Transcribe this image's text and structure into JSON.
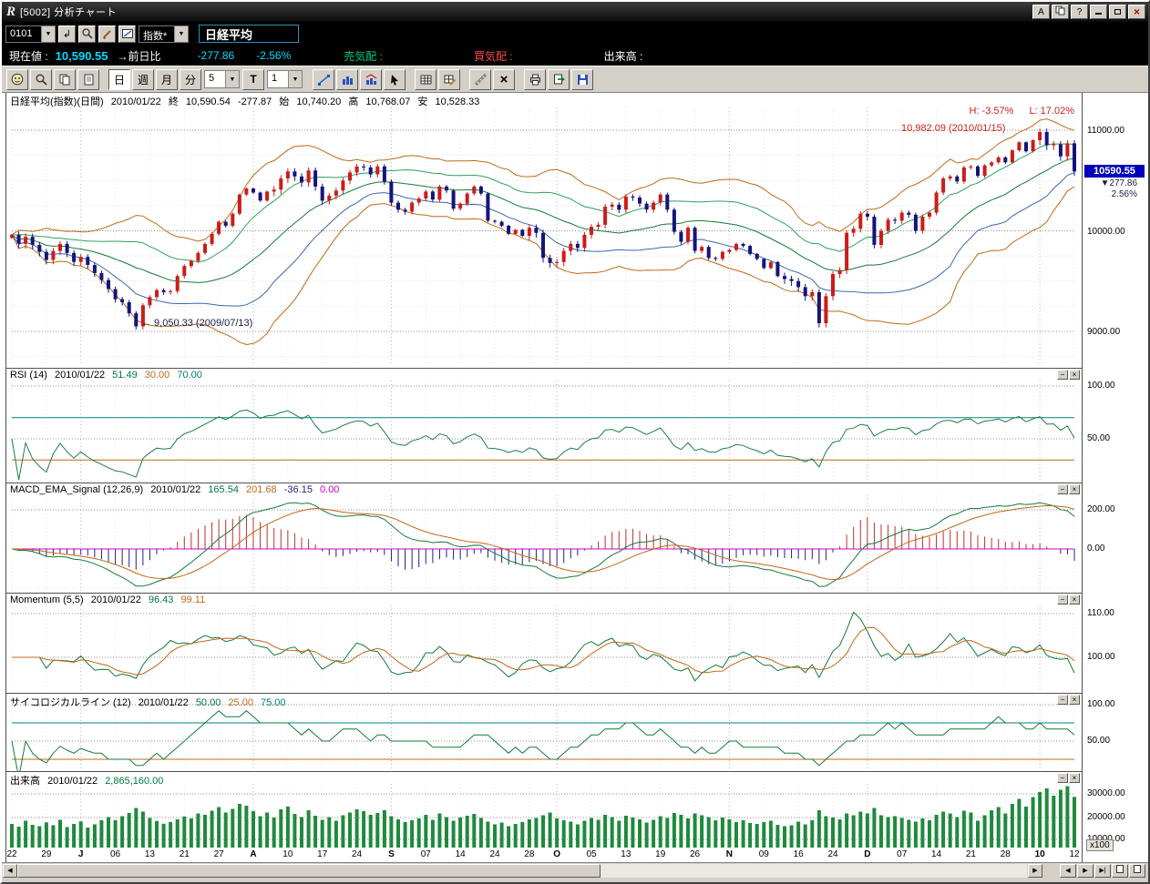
{
  "window": {
    "title": "[5002]  分析チャート",
    "logo_letter": "R",
    "a_button": "A",
    "help_button": "?"
  },
  "toolbar1": {
    "code_value": "0101",
    "index_dropdown": "指数*",
    "symbol_name": "日経平均"
  },
  "statusbar": {
    "label_current": "現在値 :",
    "current_value": "10,590.55",
    "label_prev": "→前日比",
    "diff": "-277.86",
    "diff_pct": "-2.56%",
    "label_ask": "売気配 :",
    "label_bid": "買気配 :",
    "label_volume": "出来高 :"
  },
  "toolbar2": {
    "day": "日",
    "week": "週",
    "month": "月",
    "minute": "分",
    "minute_value": "5",
    "tick": "T",
    "count_value": "1"
  },
  "ui": {
    "panel_minimize": "−",
    "panel_close": "×"
  },
  "chart_data": {
    "type": "candlestick-multi-panel",
    "price_header": {
      "instrument": "日経平均(指数)(日間)",
      "date": "2010/01/22",
      "close_label": "終",
      "close": "10,590.54",
      "change": "-277.87",
      "open_label": "始",
      "open": "10,740.20",
      "high_label": "高",
      "high": "10,768.07",
      "low_label": "安",
      "low": "10,528.33"
    },
    "hl_stats": {
      "h": "H: -3.57%",
      "l": "L: 17.02%"
    },
    "annotations": {
      "peak": "10,982.09 (2010/01/15)",
      "trough": "← 9,050.33 (2009/07/13)"
    },
    "price_axis": [
      "11000.00",
      "10000.00",
      "9000.00"
    ],
    "price_tag": {
      "value": "10590.55",
      "change": "▼277.86",
      "pct": "2.56%"
    },
    "panels": {
      "rsi": {
        "title": "RSI (14)",
        "date": "2010/01/22",
        "v1": "51.49",
        "v2": "30.00",
        "v3": "70.00",
        "axis": [
          "100.00",
          "50.00"
        ]
      },
      "macd": {
        "title": "MACD_EMA_Signal (12,26,9)",
        "date": "2010/01/22",
        "v1": "165.54",
        "v2": "201.68",
        "v3": "-36.15",
        "v4": "0.00",
        "axis": [
          "200.00",
          "0.00"
        ]
      },
      "momentum": {
        "title": "Momentum (5,5)",
        "date": "2010/01/22",
        "v1": "96.43",
        "v2": "99.11",
        "axis": [
          "110.00",
          "100.00"
        ]
      },
      "psych": {
        "title": "サイコロジカルライン (12)",
        "date": "2010/01/22",
        "v1": "50.00",
        "v2": "25.00",
        "v3": "75.00",
        "axis": [
          "100.00",
          "50.00"
        ]
      },
      "volume": {
        "title": "出来高",
        "date": "2010/01/22",
        "v1": "2,865,160.00",
        "axis": [
          "30000.00",
          "20000.00",
          "10000.00"
        ],
        "unit": "x100"
      }
    },
    "x_labels": [
      {
        "t": "22"
      },
      {
        "t": "29"
      },
      {
        "t": "J",
        "b": 1
      },
      {
        "t": "06"
      },
      {
        "t": "13"
      },
      {
        "t": "21"
      },
      {
        "t": "27"
      },
      {
        "t": "A",
        "b": 1
      },
      {
        "t": "10"
      },
      {
        "t": "17"
      },
      {
        "t": "24"
      },
      {
        "t": "S",
        "b": 1
      },
      {
        "t": "07"
      },
      {
        "t": "14"
      },
      {
        "t": "24"
      },
      {
        "t": "28"
      },
      {
        "t": "O",
        "b": 1
      },
      {
        "t": "05"
      },
      {
        "t": "13"
      },
      {
        "t": "19"
      },
      {
        "t": "26"
      },
      {
        "t": "N",
        "b": 1
      },
      {
        "t": "09"
      },
      {
        "t": "16"
      },
      {
        "t": "24"
      },
      {
        "t": "D",
        "b": 1
      },
      {
        "t": "07"
      },
      {
        "t": "14"
      },
      {
        "t": "21"
      },
      {
        "t": "28"
      },
      {
        "t": "10",
        "b": 1
      },
      {
        "t": "12"
      }
    ],
    "close": [
      9960,
      9870,
      9940,
      9860,
      9790,
      9710,
      9800,
      9870,
      9780,
      9690,
      9740,
      9660,
      9580,
      9510,
      9420,
      9320,
      9290,
      9180,
      9050,
      9260,
      9340,
      9410,
      9390,
      9400,
      9550,
      9650,
      9700,
      9780,
      9870,
      9970,
      10090,
      10050,
      10170,
      10360,
      10420,
      10380,
      10300,
      10390,
      10410,
      10520,
      10590,
      10540,
      10480,
      10600,
      10440,
      10300,
      10350,
      10400,
      10500,
      10580,
      10640,
      10630,
      10560,
      10640,
      10490,
      10280,
      10210,
      10190,
      10280,
      10320,
      10390,
      10310,
      10440,
      10400,
      10220,
      10270,
      10370,
      10440,
      10370,
      10100,
      10090,
      10050,
      9970,
      10010,
      9950,
      10030,
      9979,
      9730,
      9680,
      9690,
      9800,
      9870,
      9830,
      9960,
      10040,
      10060,
      10240,
      10260,
      10210,
      10340,
      10330,
      10270,
      10210,
      10280,
      10360,
      10210,
      9990,
      9890,
      10030,
      9800,
      9840,
      9730,
      9720,
      9790,
      9810,
      9870,
      9850,
      9770,
      9720,
      9630,
      9690,
      9550,
      9520,
      9500,
      9440,
      9350,
      9390,
      9081,
      9350,
      9570,
      9610,
      9980,
      10020,
      10170,
      10140,
      9860,
      10000,
      10110,
      10100,
      10180,
      10160,
      10000,
      10140,
      10180,
      10380,
      10520,
      10540,
      10490,
      10630,
      10640,
      10546,
      10650,
      10680,
      10730,
      10680,
      10800,
      10880,
      10790,
      10900,
      10982,
      10850,
      10860,
      10740,
      10870,
      10590.55
    ],
    "volume": [
      16800,
      15600,
      18200,
      16400,
      15800,
      17500,
      16200,
      18600,
      15400,
      16800,
      17900,
      15200,
      16600,
      18400,
      19800,
      18500,
      20200,
      21600,
      23800,
      22200,
      19400,
      18100,
      16900,
      17600,
      18800,
      20100,
      19200,
      21400,
      20800,
      22600,
      24200,
      21800,
      23400,
      25600,
      24800,
      22400,
      20200,
      21800,
      19600,
      23200,
      24400,
      21200,
      19800,
      22800,
      20400,
      18600,
      19800,
      18200,
      20600,
      21800,
      23200,
      22400,
      20800,
      21600,
      22800,
      20200,
      18800,
      17600,
      18400,
      19200,
      20800,
      18600,
      21400,
      19800,
      18200,
      19600,
      20400,
      21200,
      19400,
      17800,
      16600,
      17400,
      15800,
      16800,
      17600,
      18800,
      19400,
      20600,
      21800,
      19200,
      18400,
      17800,
      16600,
      18200,
      19400,
      18600,
      20800,
      19800,
      18200,
      20400,
      19600,
      18800,
      17400,
      18600,
      20200,
      19400,
      21600,
      20800,
      19200,
      21400,
      20600,
      19800,
      18400,
      19600,
      18800,
      17600,
      18400,
      17200,
      16800,
      17600,
      18200,
      16400,
      15800,
      16200,
      17800,
      16600,
      18400,
      22800,
      20200,
      19600,
      18800,
      21400,
      20600,
      22200,
      21400,
      23800,
      20600,
      19800,
      20200,
      19400,
      18600,
      17800,
      19200,
      18400,
      20800,
      22200,
      21400,
      19800,
      22600,
      21800,
      18200,
      20600,
      22800,
      24200,
      21400,
      25600,
      27800,
      24400,
      28600,
      30800,
      32400,
      29200,
      31800,
      33400,
      28651.6
    ]
  }
}
